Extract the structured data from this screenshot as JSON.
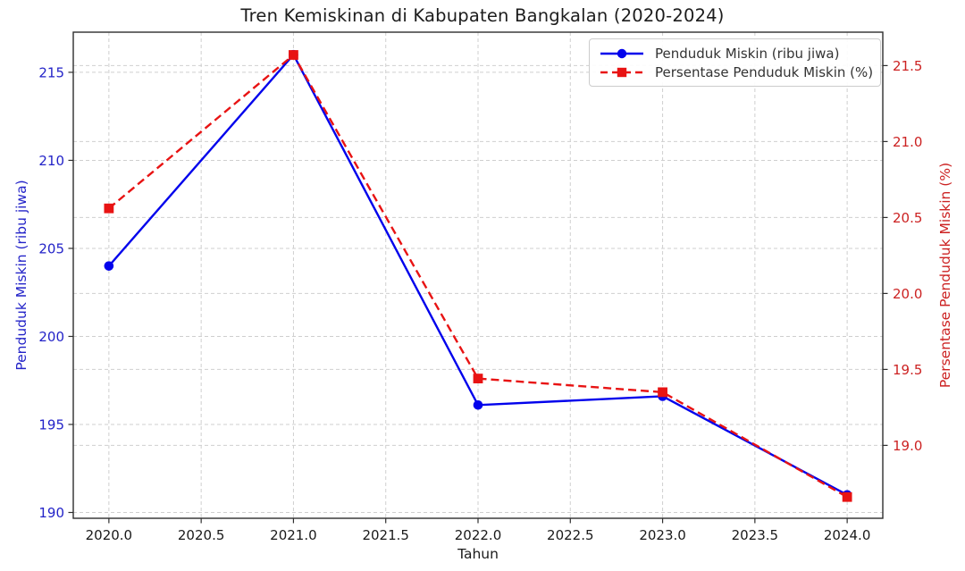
{
  "chart_data": {
    "type": "line",
    "title": "Tren Kemiskinan di Kabupaten Bangkalan (2020-2024)",
    "xlabel": "Tahun",
    "x": [
      2020,
      2021,
      2022,
      2023,
      2024
    ],
    "x_ticks": [
      2020.0,
      2020.5,
      2021.0,
      2021.5,
      2022.0,
      2022.5,
      2023.0,
      2023.5,
      2024.0
    ],
    "x_tick_labels": [
      "2020.0",
      "2020.5",
      "2021.0",
      "2021.5",
      "2022.0",
      "2022.5",
      "2023.0",
      "2023.5",
      "2024.0"
    ],
    "x_range": [
      2019.807,
      2024.193
    ],
    "grid": true,
    "legend_position": "upper right",
    "series": [
      {
        "id": "penduduk-miskin",
        "name": "Penduduk Miskin (ribu jiwa)",
        "axis": "left",
        "color": "#0202EC",
        "line_style": "solid",
        "marker": "circle",
        "values": [
          204.0,
          216.0,
          196.1,
          196.6,
          191.0
        ]
      },
      {
        "id": "persentase-penduduk-miskin",
        "name": "Persentase Penduduk Miskin (%)",
        "axis": "right",
        "color": "#E81313",
        "line_style": "dashed",
        "marker": "square",
        "values": [
          20.56,
          21.57,
          19.44,
          19.35,
          18.66
        ]
      }
    ],
    "left_axis": {
      "label": "Penduduk Miskin (ribu jiwa)",
      "color": "#2323C8",
      "ticks": [
        190,
        195,
        200,
        205,
        210,
        215
      ],
      "tick_labels": [
        "190",
        "195",
        "200",
        "205",
        "210",
        "215"
      ],
      "range": [
        189.67,
        217.28
      ]
    },
    "right_axis": {
      "label": "Persentase Penduduk Miskin (%)",
      "color": "#CC2222",
      "ticks": [
        19.0,
        19.5,
        20.0,
        20.5,
        21.0,
        21.5
      ],
      "tick_labels": [
        "19.0",
        "19.5",
        "20.0",
        "20.5",
        "21.0",
        "21.5"
      ],
      "range": [
        18.52,
        21.72
      ]
    }
  }
}
